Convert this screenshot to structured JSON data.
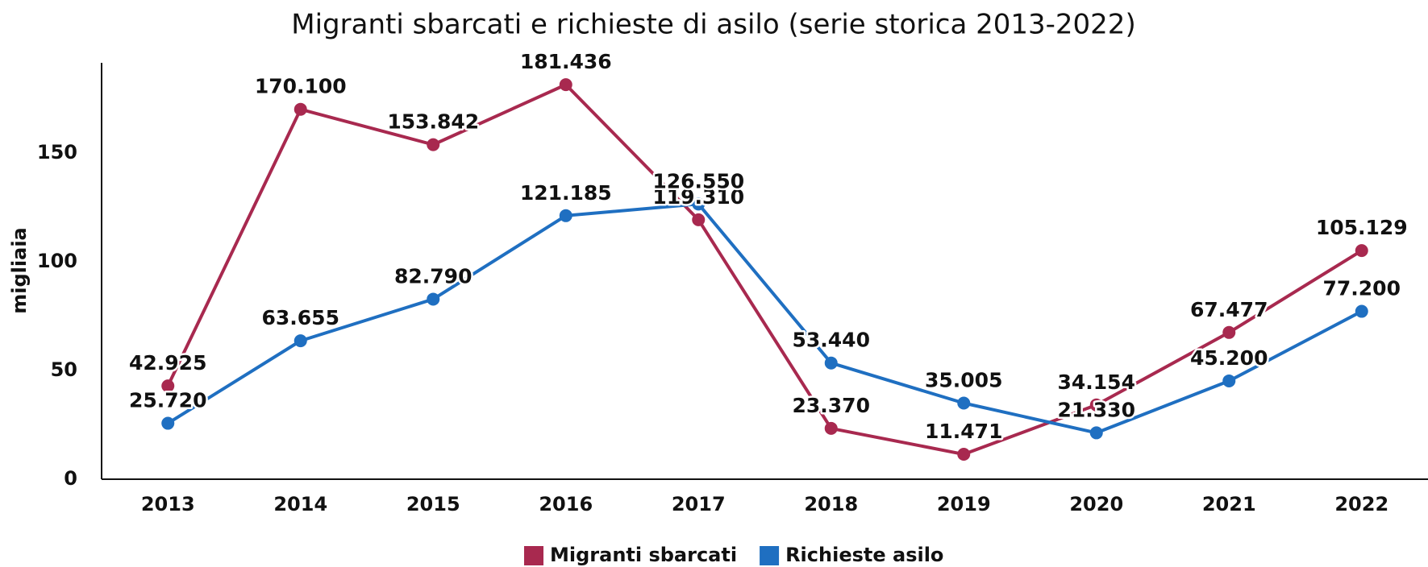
{
  "chart_data": {
    "type": "line",
    "title": "Migranti sbarcati e richieste di asilo (serie storica 2013-2022)",
    "y_label": "migliaia",
    "categories": [
      "2013",
      "2014",
      "2015",
      "2016",
      "2017",
      "2018",
      "2019",
      "2020",
      "2021",
      "2022"
    ],
    "series": [
      {
        "name": "Migranti sbarcati",
        "color": "#a8294f",
        "values": [
          42.925,
          170.1,
          153.842,
          181.436,
          119.31,
          23.37,
          11.471,
          34.154,
          67.477,
          105.129
        ],
        "value_labels": [
          "42.925",
          "170.100",
          "153.842",
          "181.436",
          "119.310",
          "23.370",
          "11.471",
          "34.154",
          "67.477",
          "105.129"
        ]
      },
      {
        "name": "Richieste asilo",
        "color": "#1f6fc1",
        "values": [
          25.72,
          63.655,
          82.79,
          121.185,
          126.55,
          53.44,
          35.005,
          21.33,
          45.2,
          77.2
        ],
        "value_labels": [
          "25.720",
          "63.655",
          "82.790",
          "121.185",
          "126.550",
          "53.440",
          "35.005",
          "21.330",
          "45.200",
          "77.200"
        ]
      }
    ],
    "ylim": [
      0,
      190
    ],
    "yticks": [
      0,
      50,
      100,
      150
    ],
    "grid": false,
    "legend": "bottom"
  }
}
